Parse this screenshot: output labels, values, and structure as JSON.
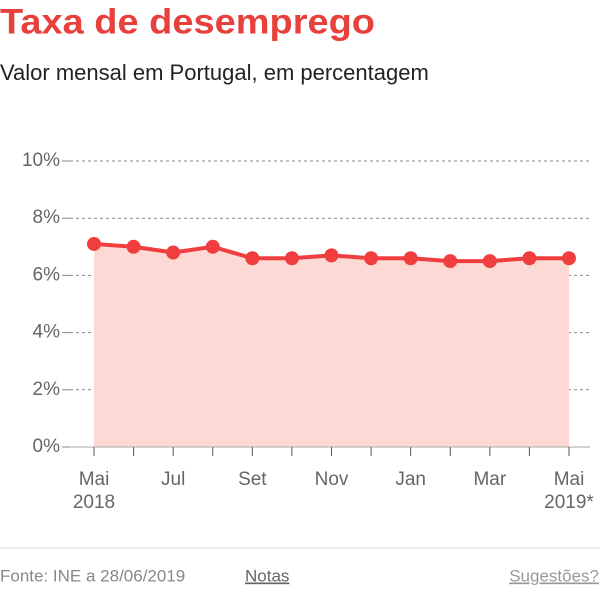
{
  "chart_data": {
    "type": "line",
    "title": "Taxa de desemprego",
    "subtitle": "Valor mensal em Portugal, em percentagem",
    "categories": [
      [
        "Mai",
        "2018"
      ],
      null,
      [
        "Jul"
      ],
      null,
      [
        "Set"
      ],
      null,
      [
        "Nov"
      ],
      null,
      [
        "Jan"
      ],
      null,
      [
        "Mar"
      ],
      null,
      [
        "Mai",
        "2019*"
      ]
    ],
    "series": [
      {
        "color": "#f03e3e",
        "area_color": "#fdd9d6",
        "values": [
          7.1,
          7.0,
          6.8,
          7.0,
          6.6,
          6.6,
          6.7,
          6.6,
          6.6,
          6.5,
          6.5,
          6.6,
          6.6
        ]
      }
    ],
    "ylim": [
      0,
      10
    ],
    "yticks": [
      {
        "value": 0,
        "label": "0%"
      },
      {
        "value": 2,
        "label": "2%"
      },
      {
        "value": 4,
        "label": "4%"
      },
      {
        "value": 6,
        "label": "6%"
      },
      {
        "value": 8,
        "label": "8%"
      },
      {
        "value": 10,
        "label": "10%"
      }
    ],
    "grid": true,
    "area": true
  },
  "footer": {
    "source": "Fonte: INE a 28/06/2019",
    "notes": "Notas",
    "suggestions": "Sugestões?"
  }
}
